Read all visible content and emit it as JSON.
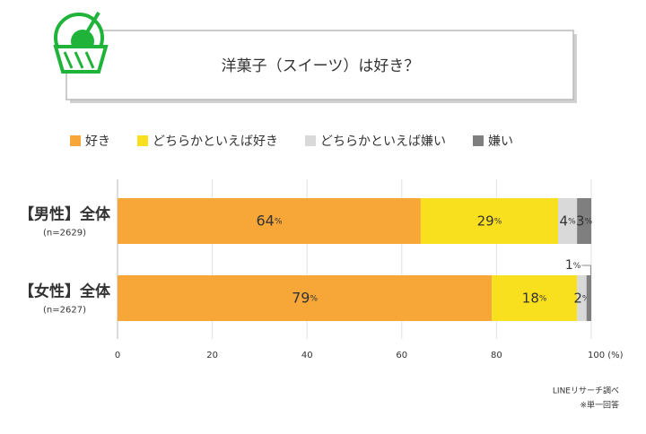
{
  "chart_data": {
    "type": "stacked-bar-horizontal",
    "title": "洋菓子（スイーツ）は好き？",
    "categories": [
      "【男性】全体",
      "【女性】全体"
    ],
    "category_notes": [
      "(n=2629)",
      "(n=2627)"
    ],
    "series": [
      {
        "name": "好き",
        "color": "#f7a738",
        "label_color": "#ffffff",
        "values": [
          64,
          79
        ],
        "value_labels": [
          "64%",
          "79%"
        ]
      },
      {
        "name": "どちらかといえば好き",
        "color": "#f9e01e",
        "label_color": "#666666",
        "values": [
          29,
          18
        ],
        "value_labels": [
          "29%",
          "18%"
        ]
      },
      {
        "name": "どちらかといえば嫌い",
        "color": "#d9d9d9",
        "label_color": "#666666",
        "values": [
          4,
          2
        ],
        "value_labels": [
          "4%",
          "2%"
        ]
      },
      {
        "name": "嫌い",
        "color": "#7f7f7f",
        "label_color": "#666666",
        "values": [
          3,
          1
        ],
        "value_labels": [
          "3%",
          "1%"
        ]
      }
    ],
    "xlim": [
      0,
      100
    ],
    "xticks": [
      0,
      20,
      40,
      60,
      80,
      {
        "value": 100,
        "label": "100 (%)"
      }
    ],
    "grid": true,
    "legend": "top",
    "source": "LINEリサーチ調べ",
    "note": "※単一回答"
  }
}
